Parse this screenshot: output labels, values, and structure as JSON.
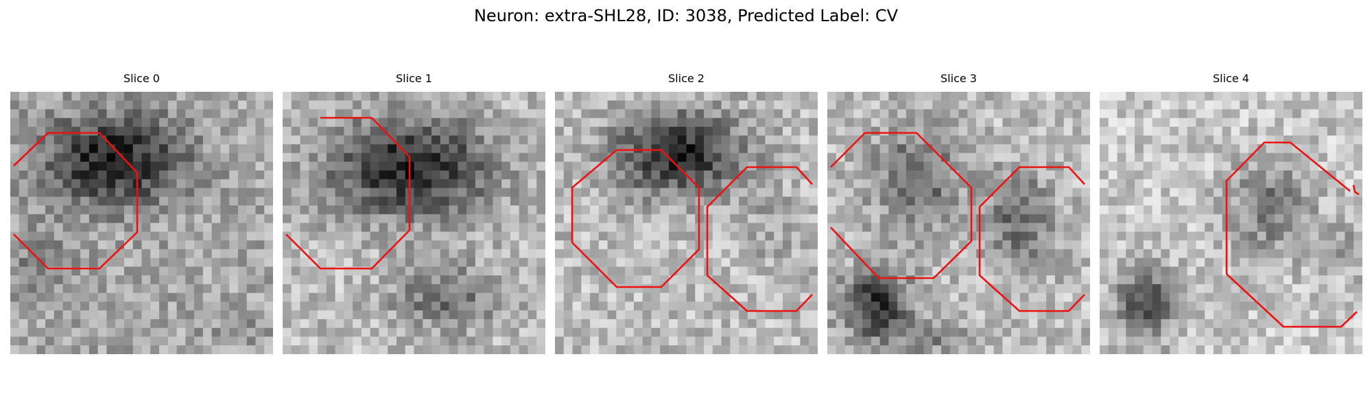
{
  "figure": {
    "title": "Neuron: extra-SHL28, ID: 3038, Predicted Label: CV"
  },
  "slices": [
    {
      "title": "Slice 0"
    },
    {
      "title": "Slice 1"
    },
    {
      "title": "Slice 2"
    },
    {
      "title": "Slice 3"
    },
    {
      "title": "Slice 4"
    }
  ],
  "colors": {
    "contour": "#ee1111",
    "background": "#ffffff"
  }
}
